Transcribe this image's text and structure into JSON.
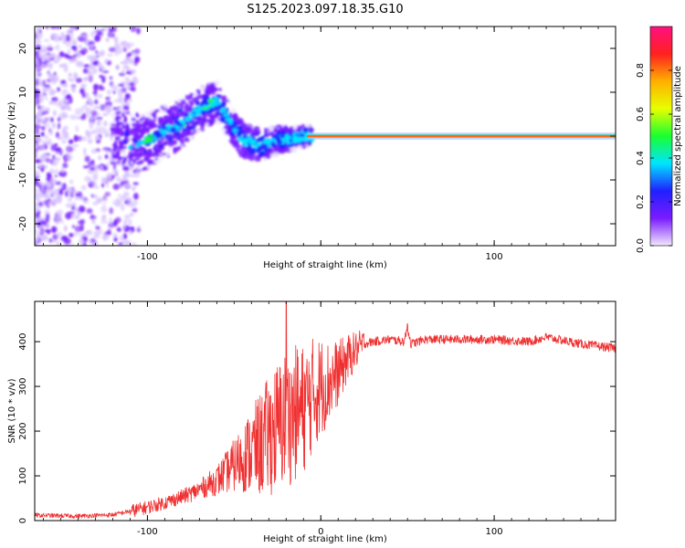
{
  "title": "S125.2023.097.18.35.G10",
  "chart_data": [
    {
      "type": "heatmap",
      "xlabel": "Height of straight line (km)",
      "ylabel": "Frequency (Hz)",
      "xlim": [
        -165,
        170
      ],
      "ylim": [
        -25,
        25
      ],
      "x_ticks": [
        -100,
        0,
        100
      ],
      "x_tick_labels": [
        "-100",
        "",
        "100"
      ],
      "y_ticks": [
        -20,
        -10,
        0,
        10,
        20
      ],
      "y_tick_labels": [
        "-20",
        "-10",
        "0",
        "10",
        "20"
      ],
      "grid": false,
      "colorbar": {
        "label": "Normalized spectral amplitude",
        "range": [
          0,
          1
        ],
        "ticks": [
          0.0,
          0.2,
          0.4,
          0.6,
          0.8
        ],
        "tick_labels": [
          "0.0",
          "0.2",
          "0.4",
          "0.6",
          "0.8"
        ],
        "colormap": "rainbow",
        "stops": [
          "#f2e8ff",
          "#7a1cff",
          "#2020ff",
          "#00e5ff",
          "#18ff30",
          "#e8ff00",
          "#ffb000",
          "#ff2020",
          "#ff1080"
        ]
      },
      "ridge": [
        {
          "x": -110,
          "y": -2
        },
        {
          "x": -100,
          "y": -1
        },
        {
          "x": -90,
          "y": 1
        },
        {
          "x": -80,
          "y": 3
        },
        {
          "x": -70,
          "y": 6
        },
        {
          "x": -60,
          "y": 8
        },
        {
          "x": -55,
          "y": 5
        },
        {
          "x": -45,
          "y": -1
        },
        {
          "x": -35,
          "y": -2
        },
        {
          "x": -25,
          "y": -1
        },
        {
          "x": -15,
          "y": -0.5
        },
        {
          "x": -10,
          "y": 0
        },
        {
          "x": 170,
          "y": 0
        }
      ],
      "carrier_line": {
        "x_start": -8,
        "x_end": 170,
        "frequency": 0
      }
    },
    {
      "type": "line",
      "xlabel": "Height of straight line (km)",
      "ylabel": "SNR (10 * v/v)",
      "xlim": [
        -165,
        170
      ],
      "ylim": [
        0,
        490
      ],
      "x_ticks": [
        -100,
        0,
        100
      ],
      "x_tick_labels": [
        "-100",
        "0",
        "100"
      ],
      "y_ticks": [
        0,
        100,
        200,
        300,
        400
      ],
      "y_tick_labels": [
        "0",
        "100",
        "200",
        "300",
        "400"
      ],
      "grid": false,
      "series": [
        {
          "color": "#f03030",
          "x": [
            -165,
            -140,
            -120,
            -105,
            -90,
            -75,
            -60,
            -45,
            -35,
            -25,
            -20,
            -15,
            -10,
            -5,
            0,
            5,
            10,
            15,
            20,
            25,
            30,
            40,
            48,
            50,
            52,
            60,
            80,
            100,
            120,
            130,
            150,
            170
          ],
          "y": [
            12,
            10,
            13,
            25,
            40,
            60,
            90,
            140,
            170,
            210,
            230,
            240,
            250,
            280,
            300,
            310,
            330,
            360,
            380,
            395,
            400,
            405,
            400,
            430,
            395,
            405,
            405,
            405,
            400,
            410,
            395,
            385
          ],
          "spikes": [
            {
              "x": -20,
              "y": 490
            },
            {
              "x": -18,
              "y": 330
            },
            {
              "x": 50,
              "y": 440
            }
          ]
        }
      ]
    }
  ]
}
